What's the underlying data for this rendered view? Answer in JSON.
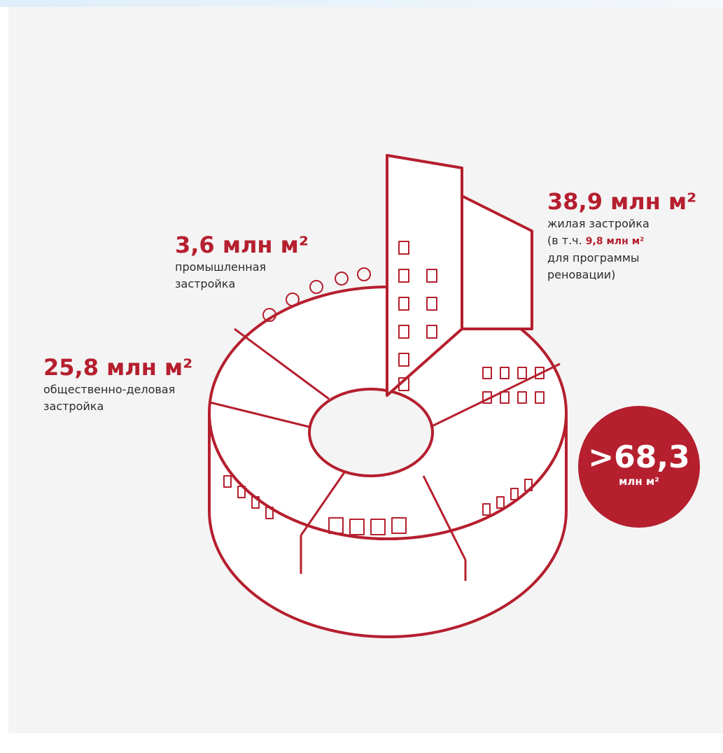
{
  "labels": {
    "industrial": {
      "value": "3,6 млн м²",
      "lines": [
        "промышленная",
        "застройка"
      ]
    },
    "business": {
      "value": "25,8 млн м²",
      "lines": [
        "общественно-деловая",
        "застройка"
      ]
    },
    "residential": {
      "value": "38,9 млн м²",
      "lines": [
        "жилая застройка",
        "(в т.ч.",
        "9,8 млн м²",
        "для программы",
        "реновации)"
      ]
    },
    "total": {
      "value": ">68,3",
      "unit": "млн м²"
    }
  }
}
